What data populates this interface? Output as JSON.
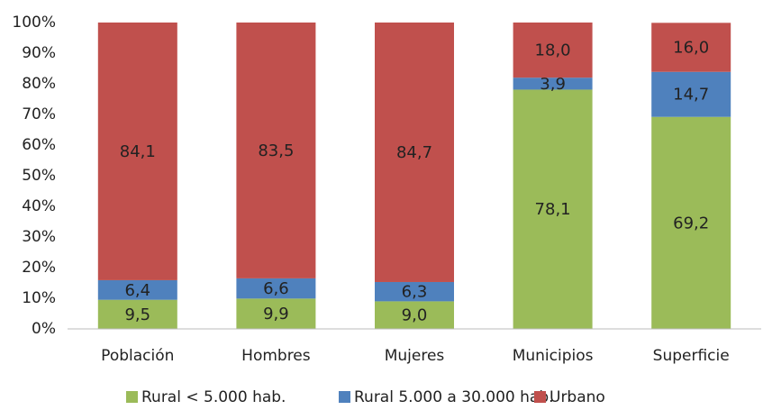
{
  "chart_data": {
    "type": "stacked_bar",
    "categories": [
      "Población",
      "Hombres",
      "Mujeres",
      "Municipios",
      "Superficie"
    ],
    "series": [
      {
        "name": "Rural < 5.000 hab.",
        "color": "#9bbb59",
        "values": [
          9.5,
          9.9,
          9.0,
          78.1,
          69.2
        ],
        "value_labels": [
          "9,5",
          "9,9",
          "9,0",
          "78,1",
          "69,2"
        ]
      },
      {
        "name": "Rural 5.000 a 30.000 hab.",
        "color": "#4f81bd",
        "values": [
          6.4,
          6.6,
          6.3,
          3.9,
          14.7
        ],
        "value_labels": [
          "6,4",
          "6,6",
          "6,3",
          "3,9",
          "14,7"
        ]
      },
      {
        "name": "Urbano",
        "color": "#c0504d",
        "values": [
          84.1,
          83.5,
          84.7,
          18.0,
          16.0
        ],
        "value_labels": [
          "84,1",
          "83,5",
          "84,7",
          "18,0",
          "16,0"
        ]
      }
    ],
    "ylim": [
      0,
      100
    ],
    "yticks": [
      {
        "value": 0,
        "label": "0%"
      },
      {
        "value": 10,
        "label": "10%"
      },
      {
        "value": 20,
        "label": "20%"
      },
      {
        "value": 30,
        "label": "30%"
      },
      {
        "value": 40,
        "label": "40%"
      },
      {
        "value": 50,
        "label": "50%"
      },
      {
        "value": 60,
        "label": "60%"
      },
      {
        "value": 70,
        "label": "70%"
      },
      {
        "value": 80,
        "label": "80%"
      },
      {
        "value": 90,
        "label": "90%"
      },
      {
        "value": 100,
        "label": "100%"
      }
    ],
    "grid": false,
    "legend": "bottom"
  }
}
